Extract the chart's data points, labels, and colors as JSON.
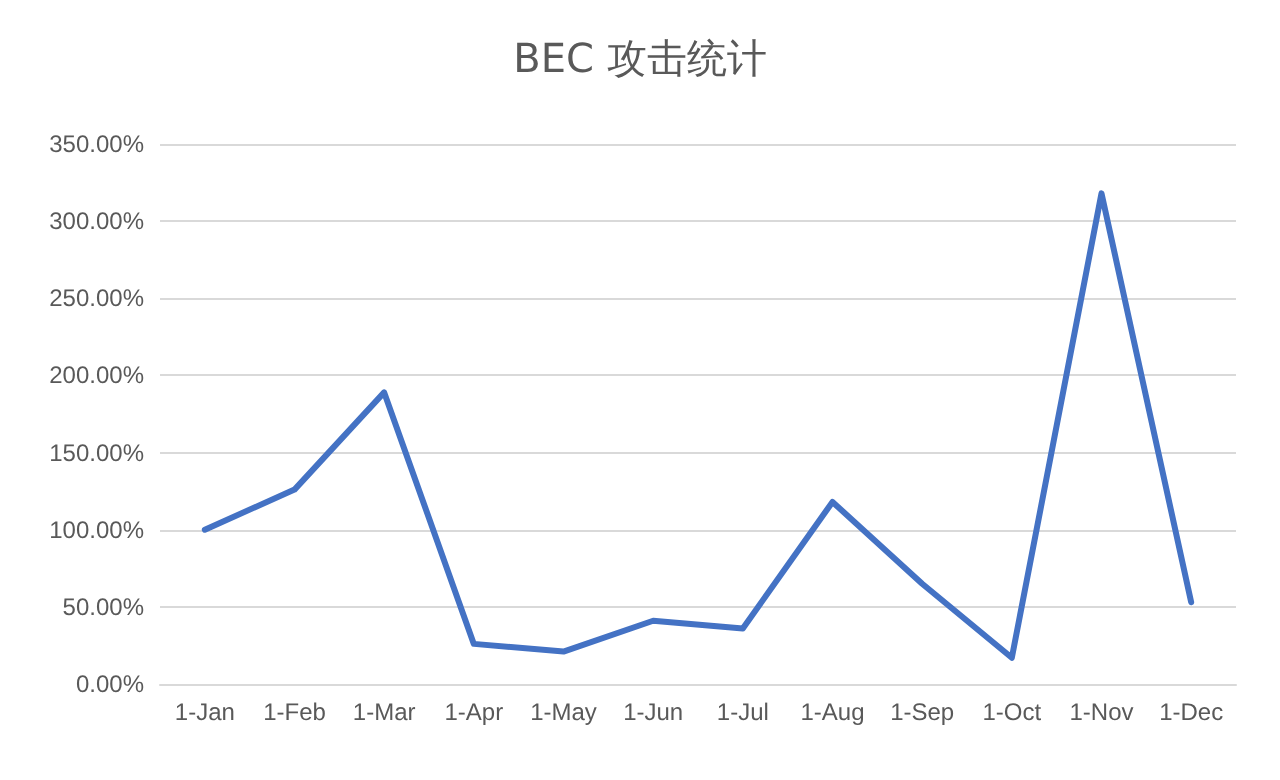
{
  "chart_data": {
    "type": "line",
    "title": "BEC 攻击统计",
    "categories": [
      "1-Jan",
      "1-Feb",
      "1-Mar",
      "1-Apr",
      "1-May",
      "1-Jun",
      "1-Jul",
      "1-Aug",
      "1-Sep",
      "1-Oct",
      "1-Nov",
      "1-Dec"
    ],
    "series": [
      {
        "color": "#4472c4",
        "values": [
          100,
          126,
          189,
          26,
          21,
          41,
          36,
          118,
          65,
          17,
          318,
          53
        ]
      }
    ],
    "ylim": [
      0,
      350
    ],
    "yticks": [
      {
        "value": 0,
        "label": "0.00%"
      },
      {
        "value": 50,
        "label": "50.00%"
      },
      {
        "value": 100,
        "label": "100.00%"
      },
      {
        "value": 150,
        "label": "150.00%"
      },
      {
        "value": 200,
        "label": "200.00%"
      },
      {
        "value": 250,
        "label": "250.00%"
      },
      {
        "value": 300,
        "label": "300.00%"
      },
      {
        "value": 350,
        "label": "350.00%"
      }
    ],
    "grid": "y",
    "marker": "none",
    "line_style": "solid"
  }
}
